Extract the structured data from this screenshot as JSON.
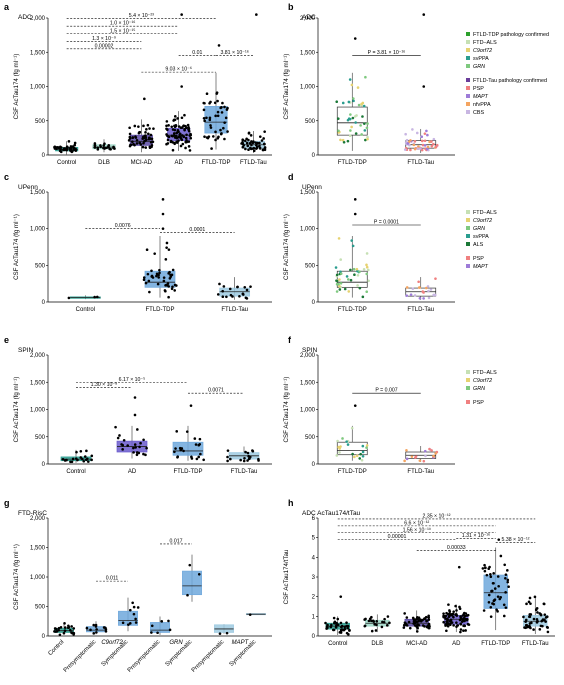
{
  "figure": {
    "width": 564,
    "height": 685
  },
  "colors": {
    "teal": "#2a9d8f",
    "lightgreen": "#9fd8c8",
    "purple": "#6a5acd",
    "darkpurple": "#5b4aa6",
    "blue": "#6fa8dc",
    "lightblue": "#9ecae1",
    "gray": "#7f7f7f"
  },
  "legends": {
    "b": {
      "groups": [
        {
          "header": "FTLD-TDP pathology confirmed",
          "header_color": "#2ca02c",
          "items": [
            {
              "label": "FTD–ALS",
              "color": "#c6e0b4"
            },
            {
              "label": "C9orf72",
              "color": "#e6d270"
            },
            {
              "label": "svPPA",
              "color": "#2a9d8f"
            },
            {
              "label": "GRN",
              "color": "#7fc97f"
            }
          ]
        },
        {
          "header": "FTLD-Tau pathology confirmed",
          "header_color": "#6a3d9a",
          "items": [
            {
              "label": "PSP",
              "color": "#f08080"
            },
            {
              "label": "MAPT",
              "color": "#9e7cd8"
            },
            {
              "label": "nfvPPA",
              "color": "#f4a460"
            },
            {
              "label": "CBS",
              "color": "#c8b6e2"
            }
          ]
        }
      ]
    },
    "d": {
      "groups": [
        {
          "header": "",
          "items": [
            {
              "label": "FTD–ALS",
              "color": "#c6e0b4"
            },
            {
              "label": "C9orf72",
              "color": "#e6d270"
            },
            {
              "label": "GRN",
              "color": "#7fc97f"
            },
            {
              "label": "svPPA",
              "color": "#2a9d8f"
            },
            {
              "label": "ALS",
              "color": "#1b7837"
            }
          ]
        },
        {
          "header": "",
          "items": [
            {
              "label": "PSP",
              "color": "#f08080"
            },
            {
              "label": "MAPT",
              "color": "#9e7cd8"
            }
          ]
        }
      ]
    },
    "f": {
      "groups": [
        {
          "header": "",
          "items": [
            {
              "label": "FTD–ALS",
              "color": "#c6e0b4"
            },
            {
              "label": "C9orf72",
              "color": "#e6d270"
            },
            {
              "label": "GRN",
              "color": "#7fc97f"
            }
          ]
        },
        {
          "header": "",
          "items": [
            {
              "label": "PSP",
              "color": "#f08080"
            }
          ]
        }
      ]
    }
  },
  "chart_data": [
    {
      "panel": "a",
      "subtitle": "ADC",
      "type": "box",
      "ylabel": "CSF AcTau174 (fg ml⁻¹)",
      "ylim": [
        0,
        2000
      ],
      "yticks": [
        0,
        500,
        1000,
        1500,
        2000
      ],
      "categories": [
        "Control",
        "DLB",
        "MCI-AD",
        "AD",
        "FTLD-TDP",
        "FTLD-Tau"
      ],
      "box_colors": [
        "#2a9d8f",
        "#9fd8c8",
        "#5b4aa6",
        "#6a5acd",
        "#6fa8dc",
        "#9ecae1"
      ],
      "boxes": [
        {
          "q1": 60,
          "median": 80,
          "q3": 110,
          "wlo": 10,
          "whi": 200,
          "n": 40
        },
        {
          "q1": 90,
          "median": 115,
          "q3": 150,
          "wlo": 40,
          "whi": 230,
          "n": 22
        },
        {
          "q1": 140,
          "median": 200,
          "q3": 290,
          "wlo": 40,
          "whi": 520,
          "n": 55
        },
        {
          "q1": 210,
          "median": 290,
          "q3": 390,
          "wlo": 60,
          "whi": 640,
          "n": 85
        },
        {
          "q1": 320,
          "median": 480,
          "q3": 710,
          "wlo": 80,
          "whi": 1200,
          "n": 45
        },
        {
          "q1": 100,
          "median": 150,
          "q3": 200,
          "wlo": 30,
          "whi": 350,
          "n": 50
        }
      ],
      "outliers": [
        {
          "cat": 3,
          "y": 2050
        },
        {
          "cat": 5,
          "y": 2050
        },
        {
          "cat": 4,
          "y": 1600
        },
        {
          "cat": 3,
          "y": 1000
        },
        {
          "cat": 2,
          "y": 820
        }
      ],
      "comparisons": [
        {
          "from": 0,
          "to": 4,
          "label": "5.4 × 10⁻²³",
          "y": 1990
        },
        {
          "from": 0,
          "to": 3,
          "label": "1.0 × 10⁻¹⁶",
          "y": 1880
        },
        {
          "from": 0,
          "to": 3,
          "label": "1.5 × 10⁻¹⁵",
          "y": 1770
        },
        {
          "from": 0,
          "to": 2,
          "label": "1.3 × 10⁻⁹",
          "y": 1660
        },
        {
          "from": 0,
          "to": 2,
          "label": "0.00002",
          "y": 1550
        },
        {
          "from": 2,
          "to": 4,
          "label": "9.03 × 10⁻⁶",
          "y": 1210
        },
        {
          "from": 3,
          "to": 4,
          "label": "0.01",
          "y": 1450
        },
        {
          "from": 4,
          "to": 5,
          "label": "3.81 × 10⁻¹⁶",
          "y": 1450
        }
      ]
    },
    {
      "panel": "b",
      "subtitle": "ADC",
      "type": "box",
      "ylabel": "CSF AcTau174 (fg ml⁻¹)",
      "ylim": [
        0,
        2000
      ],
      "yticks": [
        0,
        500,
        1000,
        1500,
        2000
      ],
      "categories": [
        "FTLD-TDP",
        "FTLD-Tau"
      ],
      "box_colors": [
        "#ffffff",
        "#ffffff"
      ],
      "boxes": [
        {
          "q1": 290,
          "median": 470,
          "q3": 700,
          "wlo": 60,
          "whi": 1200,
          "n": 45
        },
        {
          "q1": 100,
          "median": 150,
          "q3": 210,
          "wlo": 30,
          "whi": 380,
          "n": 50
        }
      ],
      "outliers": [
        {
          "cat": 1,
          "y": 2050
        },
        {
          "cat": 0,
          "y": 1700
        },
        {
          "cat": 1,
          "y": 1000
        }
      ],
      "comparisons": [
        {
          "from": 0,
          "to": 1,
          "label": "P = 3.81 × 10⁻¹⁶",
          "y": 1450
        }
      ]
    },
    {
      "panel": "c",
      "subtitle": "UPenn",
      "type": "box",
      "ylabel": "CSF AcTau174 (fg ml⁻¹)",
      "ylim": [
        0,
        1500
      ],
      "yticks": [
        0,
        500,
        1000,
        1500
      ],
      "categories": [
        "Control",
        "FTLD-TDP",
        "FTLD-Tau"
      ],
      "box_colors": [
        "#2a9d8f",
        "#6fa8dc",
        "#9ecae1"
      ],
      "boxes": [
        {
          "q1": 50,
          "median": 60,
          "q3": 70,
          "wlo": 40,
          "whi": 90,
          "n": 3
        },
        {
          "q1": 200,
          "median": 270,
          "q3": 420,
          "wlo": 60,
          "whi": 900,
          "n": 45
        },
        {
          "q1": 80,
          "median": 140,
          "q3": 190,
          "wlo": 30,
          "whi": 340,
          "n": 20
        }
      ],
      "outliers": [
        {
          "cat": 1,
          "y": 1400
        },
        {
          "cat": 1,
          "y": 1200
        },
        {
          "cat": 1,
          "y": 1000
        }
      ],
      "comparisons": [
        {
          "from": 0,
          "to": 1,
          "label": "0.0076",
          "y": 1000
        },
        {
          "from": 1,
          "to": 2,
          "label": "0.0001",
          "y": 950
        }
      ]
    },
    {
      "panel": "d",
      "subtitle": "UPenn",
      "type": "box",
      "ylabel": "CSF AcTau174 (fg ml⁻¹)",
      "ylim": [
        0,
        1500
      ],
      "yticks": [
        0,
        500,
        1000,
        1500
      ],
      "categories": [
        "FTLD-TDP",
        "FTLD-Tau"
      ],
      "box_colors": [
        "#ffffff",
        "#ffffff"
      ],
      "boxes": [
        {
          "q1": 200,
          "median": 270,
          "q3": 420,
          "wlo": 60,
          "whi": 900,
          "n": 45
        },
        {
          "q1": 80,
          "median": 140,
          "q3": 190,
          "wlo": 30,
          "whi": 340,
          "n": 20
        }
      ],
      "outliers": [
        {
          "cat": 0,
          "y": 1400
        },
        {
          "cat": 0,
          "y": 1200
        }
      ],
      "comparisons": [
        {
          "from": 0,
          "to": 1,
          "label": "P = 0.0001",
          "y": 1050
        }
      ]
    },
    {
      "panel": "e",
      "subtitle": "SPIN",
      "type": "box",
      "ylabel": "CSF AcTau174 (fg ml⁻¹)",
      "ylim": [
        0,
        2000
      ],
      "yticks": [
        0,
        500,
        1000,
        1500,
        2000
      ],
      "categories": [
        "Control",
        "AD",
        "FTLD-TDP",
        "FTLD-Tau"
      ],
      "box_colors": [
        "#2a9d8f",
        "#6a5acd",
        "#6fa8dc",
        "#9ecae1"
      ],
      "boxes": [
        {
          "q1": 60,
          "median": 90,
          "q3": 130,
          "wlo": 20,
          "whi": 260,
          "n": 20
        },
        {
          "q1": 220,
          "median": 320,
          "q3": 420,
          "wlo": 100,
          "whi": 700,
          "n": 22
        },
        {
          "q1": 160,
          "median": 240,
          "q3": 400,
          "wlo": 60,
          "whi": 700,
          "n": 22
        },
        {
          "q1": 90,
          "median": 150,
          "q3": 210,
          "wlo": 40,
          "whi": 320,
          "n": 18
        }
      ],
      "outliers": [
        {
          "cat": 1,
          "y": 1220
        },
        {
          "cat": 2,
          "y": 1070
        },
        {
          "cat": 1,
          "y": 900
        }
      ],
      "comparisons": [
        {
          "from": 0,
          "to": 2,
          "label": "6.17 × 10⁻⁵",
          "y": 1500
        },
        {
          "from": 0,
          "to": 1,
          "label": "1.30 × 10⁻⁸",
          "y": 1400
        },
        {
          "from": 2,
          "to": 3,
          "label": "0.0071",
          "y": 1300
        }
      ]
    },
    {
      "panel": "f",
      "subtitle": "SPIN",
      "type": "box",
      "ylabel": "CSF AcTau174 (fg ml⁻¹)",
      "ylim": [
        0,
        2000
      ],
      "yticks": [
        0,
        500,
        1000,
        1500,
        2000
      ],
      "categories": [
        "FTLD-TDP",
        "FTLD-Tau"
      ],
      "box_colors": [
        "#ffffff",
        "#ffffff"
      ],
      "boxes": [
        {
          "q1": 170,
          "median": 250,
          "q3": 400,
          "wlo": 60,
          "whi": 700,
          "n": 22
        },
        {
          "q1": 100,
          "median": 160,
          "q3": 220,
          "wlo": 40,
          "whi": 330,
          "n": 18
        }
      ],
      "outliers": [
        {
          "cat": 0,
          "y": 1070
        }
      ],
      "comparisons": [
        {
          "from": 0,
          "to": 1,
          "label": "P = 0.007",
          "y": 1300
        }
      ]
    },
    {
      "panel": "g",
      "subtitle": "FTD-RisC",
      "type": "box",
      "ylabel": "CSF AcTau174 (fg ml⁻¹)",
      "ylim": [
        0,
        2000
      ],
      "yticks": [
        0,
        500,
        1000,
        1500,
        2000
      ],
      "categories": [
        "Control",
        "Presymptomatic",
        "Symptomatic",
        "Presymptomatic",
        "Symptomatic",
        "Presymptomatic",
        "Symptomatic"
      ],
      "group_labels": [
        {
          "label": "C9orf72",
          "from": 1,
          "to": 2
        },
        {
          "label": "GRN",
          "from": 3,
          "to": 4
        },
        {
          "label": "MAPT",
          "from": 5,
          "to": 6
        }
      ],
      "box_colors": [
        "#2a9d8f",
        "#6fa8dc",
        "#6fa8dc",
        "#6fa8dc",
        "#6fa8dc",
        "#9ecae1",
        "#9ecae1"
      ],
      "boxes": [
        {
          "q1": 60,
          "median": 90,
          "q3": 130,
          "wlo": 20,
          "whi": 220,
          "n": 25
        },
        {
          "q1": 70,
          "median": 100,
          "q3": 160,
          "wlo": 30,
          "whi": 250,
          "n": 12
        },
        {
          "q1": 180,
          "median": 260,
          "q3": 420,
          "wlo": 80,
          "whi": 650,
          "n": 10
        },
        {
          "q1": 60,
          "median": 100,
          "q3": 230,
          "wlo": 20,
          "whi": 330,
          "n": 6
        },
        {
          "q1": 700,
          "median": 850,
          "q3": 1100,
          "wlo": 580,
          "whi": 1380,
          "n": 3
        },
        {
          "q1": 60,
          "median": 120,
          "q3": 190,
          "wlo": 40,
          "whi": 200,
          "n": 2
        },
        {
          "q1": 360,
          "median": 370,
          "q3": 380,
          "wlo": 360,
          "whi": 380,
          "n": 1
        }
      ],
      "outliers": [],
      "comparisons": [
        {
          "from": 1,
          "to": 2,
          "label": "0.011",
          "y": 930
        },
        {
          "from": 3,
          "to": 4,
          "label": "0.017",
          "y": 1560
        }
      ]
    },
    {
      "panel": "h",
      "subtitle": "ADC AcTau174/tTau",
      "type": "box",
      "ylabel": "CSF AcTau174/tTau",
      "ylim": [
        0,
        6
      ],
      "yticks": [
        0,
        1,
        2,
        3,
        4,
        5,
        6
      ],
      "categories": [
        "Control",
        "DLB",
        "MCI-AD",
        "AD",
        "FTLD-TDP",
        "FTLD-Tau"
      ],
      "box_colors": [
        "#2a9d8f",
        "#9fd8c8",
        "#5b4aa6",
        "#6a5acd",
        "#6fa8dc",
        "#9ecae1"
      ],
      "boxes": [
        {
          "q1": 0.35,
          "median": 0.5,
          "q3": 0.65,
          "wlo": 0.05,
          "whi": 1.0,
          "n": 40
        },
        {
          "q1": 0.5,
          "median": 0.65,
          "q3": 0.8,
          "wlo": 0.2,
          "whi": 1.1,
          "n": 22
        },
        {
          "q1": 0.5,
          "median": 0.65,
          "q3": 0.85,
          "wlo": 0.2,
          "whi": 1.3,
          "n": 55
        },
        {
          "q1": 0.6,
          "median": 0.85,
          "q3": 1.05,
          "wlo": 0.2,
          "whi": 1.6,
          "n": 85
        },
        {
          "q1": 1.4,
          "median": 2.2,
          "q3": 3.1,
          "wlo": 0.3,
          "whi": 4.5,
          "n": 45
        },
        {
          "q1": 0.5,
          "median": 0.75,
          "q3": 1.05,
          "wlo": 0.1,
          "whi": 2.0,
          "n": 50
        }
      ],
      "outliers": [
        {
          "cat": 3,
          "y": 3.5
        },
        {
          "cat": 0,
          "y": 2.0
        },
        {
          "cat": 4,
          "y": 4.9
        }
      ],
      "comparisons": [
        {
          "from": 0,
          "to": 5,
          "label": "2.35 × 10⁻¹²",
          "y": 5.95
        },
        {
          "from": 0,
          "to": 4,
          "label": "6.6 × 10⁻¹²",
          "y": 5.6
        },
        {
          "from": 0,
          "to": 4,
          "label": "1.56 × 10⁻¹⁰",
          "y": 5.25
        },
        {
          "from": 0,
          "to": 3,
          "label": "0.00001",
          "y": 4.9
        },
        {
          "from": 2,
          "to": 4,
          "label": "0.00033",
          "y": 4.35
        },
        {
          "from": 3,
          "to": 4,
          "label": "1.31 × 10⁻¹⁶",
          "y": 4.95
        },
        {
          "from": 4,
          "to": 5,
          "label": "5.38 × 10⁻¹²",
          "y": 4.75
        }
      ]
    }
  ]
}
